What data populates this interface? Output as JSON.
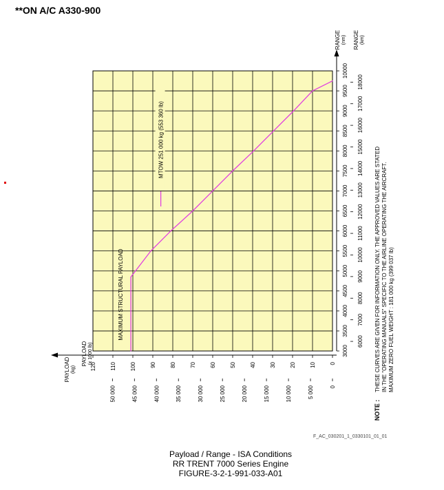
{
  "header": "**ON A/C A330-900",
  "reference_code": "F_AC_030201_1_0330101_01_01",
  "caption": [
    "Payload / Range - ISA Conditions",
    "RR TRENT 7000 Series Engine",
    "FIGURE-3-2-1-991-033-A01"
  ],
  "note": {
    "label": "NOTE :",
    "lines": [
      "THESE CURVES ARE GIVEN FOR INFORMATION ONLY. THE APPROVED VALUES ARE STATED",
      "IN THE \"OPERATING MANUALS\" SPECIFIC TO THE AIRLINE OPERATING THE AIRCRAFT.",
      "MAXIMUM ZERO FUEL WEIGHT : 181 000 kg (399 037 lb)"
    ]
  },
  "colors": {
    "plot_fill": "#fbf9bc",
    "curve": "#e040e0",
    "grid": "#000000"
  },
  "chart_data": {
    "type": "line",
    "orientation": "rotated 90 degrees counter-clockwise",
    "range_axis_label": "RANGE (nm)",
    "range_km_axis_label": "RANGE (km)",
    "payload_axis_label": "PAYLOAD (x 1000 lb)",
    "payload_kg_axis_label": "PAYLOAD (kg)",
    "range_nm_ticks": [
      "3000",
      "3500",
      "4000",
      "4500",
      "5000",
      "5500",
      "6000",
      "6500",
      "7000",
      "7500",
      "8000",
      "8500",
      "9000",
      "9500",
      "10000"
    ],
    "range_km_ticks": [
      "6000",
      "7000",
      "8000",
      "9000",
      "10000",
      "11000",
      "12000",
      "13000",
      "14000",
      "15000",
      "16000",
      "17000",
      "18000"
    ],
    "payload_lb_ticks": [
      "0",
      "10",
      "20",
      "30",
      "40",
      "50",
      "60",
      "70",
      "80",
      "90",
      "100",
      "110",
      "120"
    ],
    "payload_kg_ticks": [
      "0",
      "5 000",
      "10 000",
      "15 000",
      "20 000",
      "25 000",
      "30 000",
      "35 000",
      "40 000",
      "45 000",
      "50 000"
    ],
    "range_nm_range": [
      3000,
      10000
    ],
    "payload_lb_range": [
      0,
      120
    ],
    "grid": true,
    "series": [
      {
        "name": "MTOW 251 000 kg (553 360 lb)",
        "range_nm": [
          3000,
          4850,
          5500,
          6000,
          6500,
          7000,
          7500,
          8000,
          8500,
          9000,
          9500,
          9750
        ],
        "payload_klb": [
          101,
          101,
          91,
          81,
          70,
          60,
          50,
          39.5,
          29.5,
          19.5,
          10,
          0
        ]
      }
    ],
    "annotations": [
      {
        "text": "MAXIMUM STRUCTURAL PAYLOAD"
      },
      {
        "text": "MTOW 251 000 kg (553 360 lb)"
      }
    ]
  }
}
